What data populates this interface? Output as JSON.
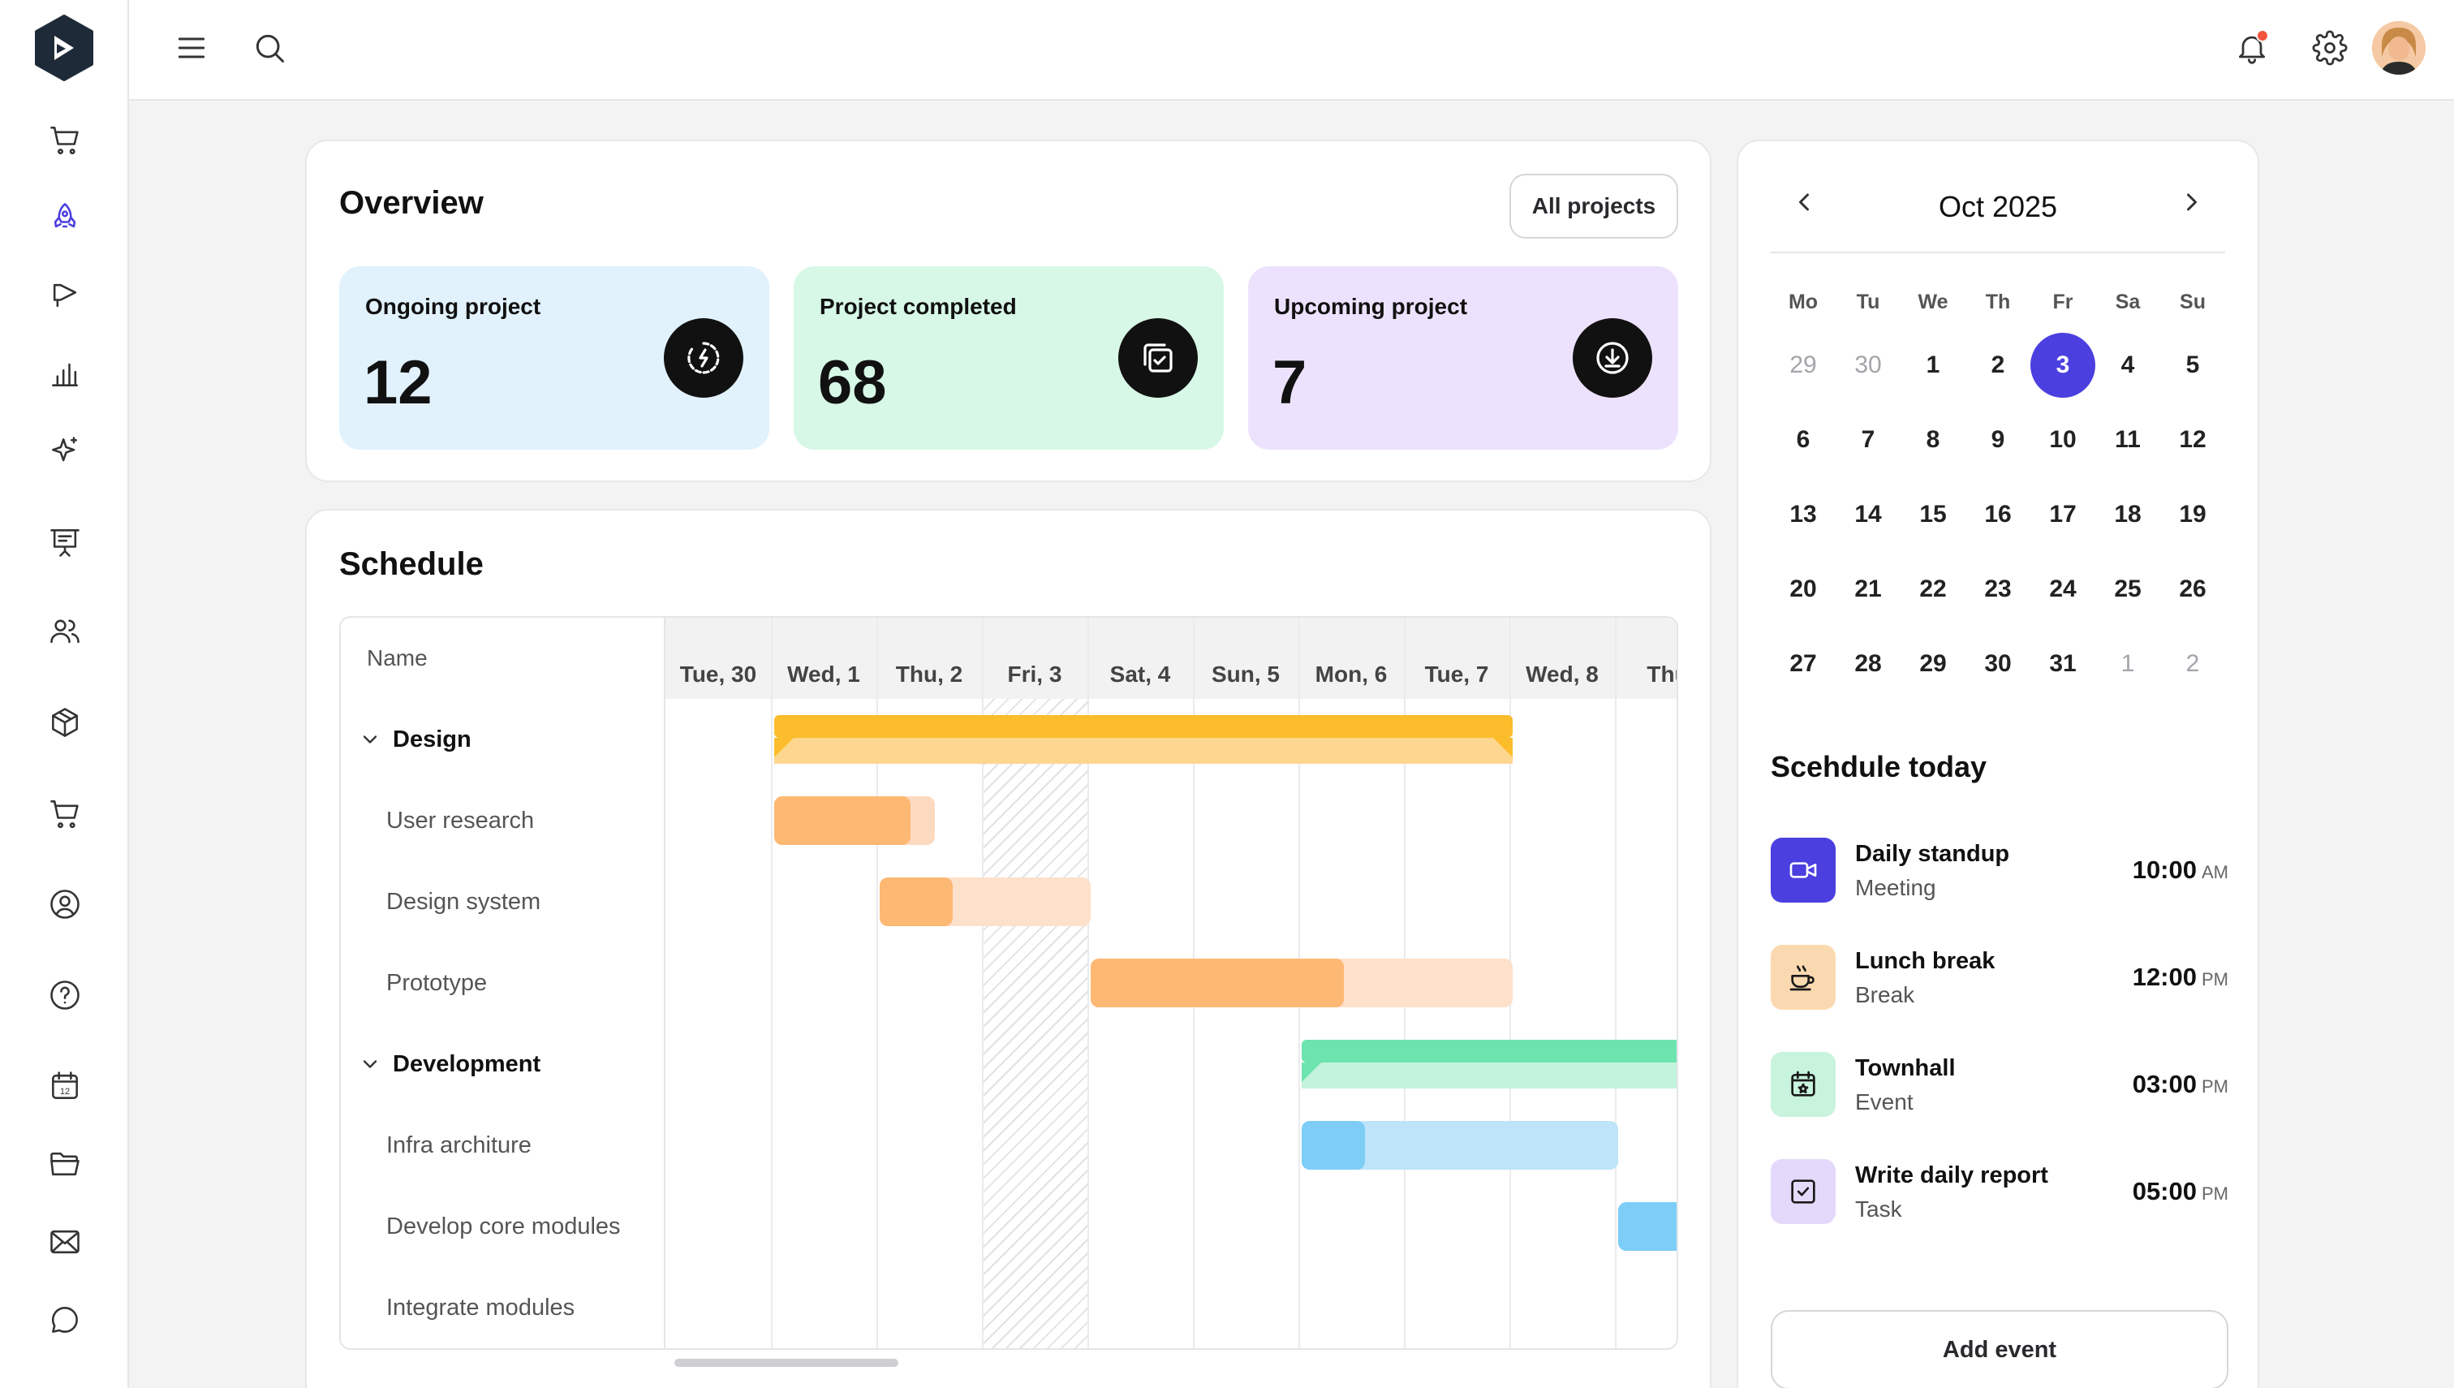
{
  "colors": {
    "accent": "#4b3fe0",
    "ongoing_bg": "#e1f2fd",
    "completed_bg": "#d7f8e6",
    "upcoming_bg": "#ede2fd"
  },
  "sidebar": {
    "icons": [
      "cart-icon",
      "rocket-icon",
      "megaphone-icon",
      "bar-chart-icon",
      "sparkle-icon",
      "presentation-icon",
      "users-icon",
      "box-icon",
      "cart-icon",
      "user-circle-icon",
      "help-circle-icon",
      "calendar-icon",
      "folder-icon",
      "mail-icon",
      "chat-icon"
    ]
  },
  "overview": {
    "title": "Overview",
    "all_projects": "All projects",
    "stats": [
      {
        "label": "Ongoing project",
        "value": "12"
      },
      {
        "label": "Project completed",
        "value": "68"
      },
      {
        "label": "Upcoming project",
        "value": "7"
      }
    ]
  },
  "schedule": {
    "title": "Schedule",
    "name_header": "Name",
    "days": [
      "Tue, 30",
      "Wed, 1",
      "Thu, 2",
      "Fri, 3",
      "Sat, 4",
      "Sun, 5",
      "Mon, 6",
      "Tue, 7",
      "Wed, 8",
      "Thu"
    ],
    "rows": [
      {
        "label": "Design",
        "group": true
      },
      {
        "label": "User research",
        "group": false
      },
      {
        "label": "Design system",
        "group": false
      },
      {
        "label": "Prototype",
        "group": false
      },
      {
        "label": "Development",
        "group": true
      },
      {
        "label": "Infra architure",
        "group": false
      },
      {
        "label": "Develop core modules",
        "group": false
      },
      {
        "label": "Integrate modules",
        "group": false
      }
    ]
  },
  "calendar": {
    "month": "Oct 2025",
    "weekdays": [
      "Mo",
      "Tu",
      "We",
      "Th",
      "Fr",
      "Sa",
      "Su"
    ],
    "weeks": [
      [
        "29",
        "30",
        "1",
        "2",
        "3",
        "4",
        "5"
      ],
      [
        "6",
        "7",
        "8",
        "9",
        "10",
        "11",
        "12"
      ],
      [
        "13",
        "14",
        "15",
        "16",
        "17",
        "18",
        "19"
      ],
      [
        "20",
        "21",
        "22",
        "23",
        "24",
        "25",
        "26"
      ],
      [
        "27",
        "28",
        "29",
        "30",
        "31",
        "1",
        "2"
      ]
    ],
    "selected": "3"
  },
  "today": {
    "title": "Scehdule today",
    "events": [
      {
        "title": "Daily standup",
        "type": "Meeting",
        "time": "10:00",
        "ampm": "AM",
        "icon": "video-icon",
        "color": "#4b3fe0"
      },
      {
        "title": "Lunch break",
        "type": "Break",
        "time": "12:00",
        "ampm": "PM",
        "icon": "coffee-icon",
        "color": "#fbd9b0"
      },
      {
        "title": "Townhall",
        "type": "Event",
        "time": "03:00",
        "ampm": "PM",
        "icon": "calendar-star-icon",
        "color": "#c8f3dc"
      },
      {
        "title": "Write daily report",
        "type": "Task",
        "time": "05:00",
        "ampm": "PM",
        "icon": "check-square-icon",
        "color": "#e4d9fb"
      }
    ],
    "add_event": "Add event"
  }
}
